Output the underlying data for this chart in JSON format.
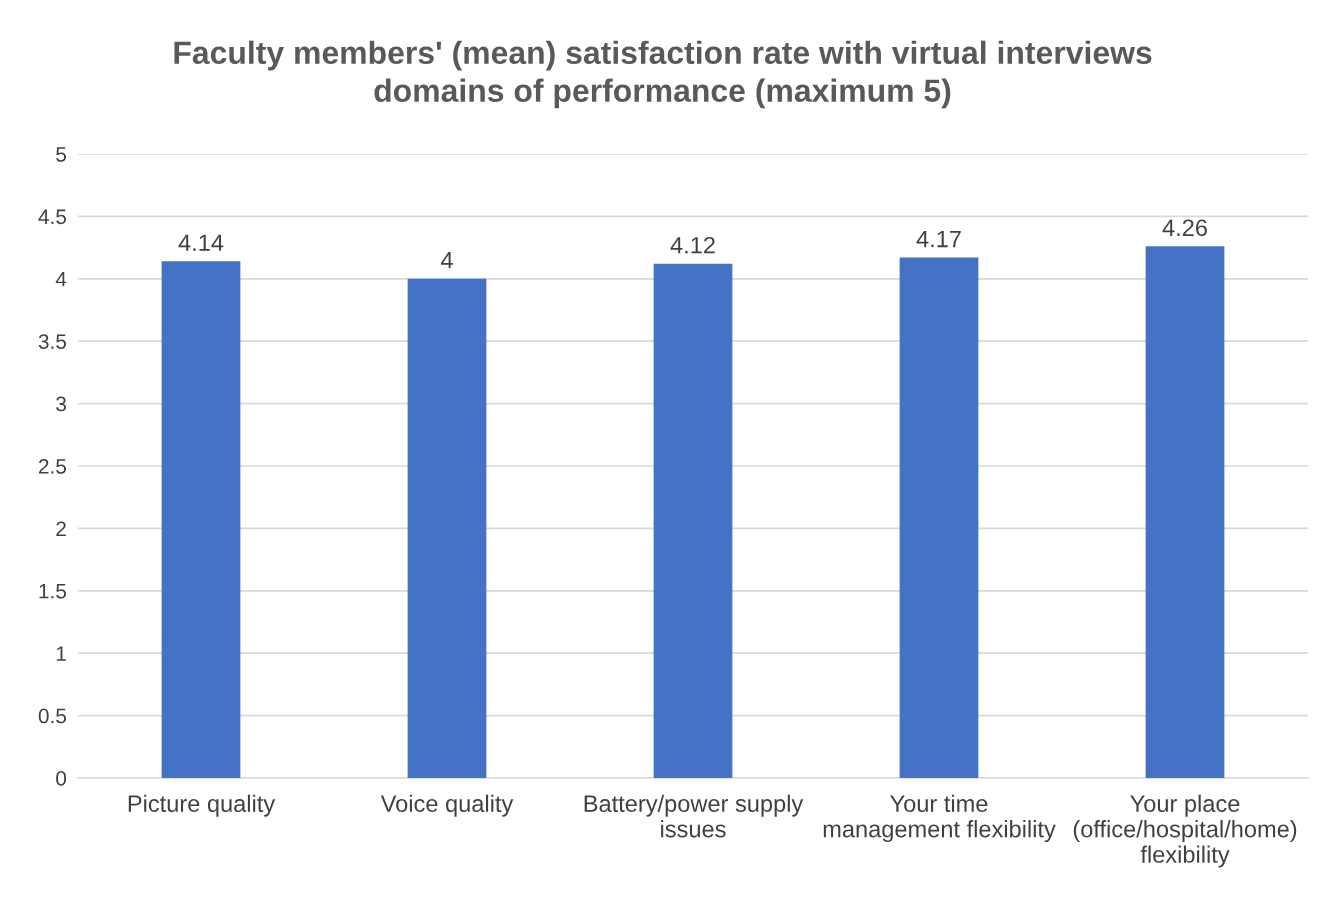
{
  "chart_data": {
    "type": "bar",
    "title": "Faculty members' (mean) satisfaction rate with virtual interviews\ndomains of performance (maximum 5)",
    "categories": [
      "Picture quality",
      "Voice quality",
      "Battery/power supply\nissues",
      "Your time\nmanagement flexibility",
      "Your place\n(office/hospital/home)\nflexibility"
    ],
    "values": [
      4.14,
      4,
      4.12,
      4.17,
      4.26
    ],
    "color": "#4472c4",
    "ylim": [
      0,
      5
    ],
    "yticks": [
      0,
      0.5,
      1,
      1.5,
      2,
      2.5,
      3,
      3.5,
      4,
      4.5,
      5
    ],
    "grid": "y",
    "data_labels": true
  }
}
